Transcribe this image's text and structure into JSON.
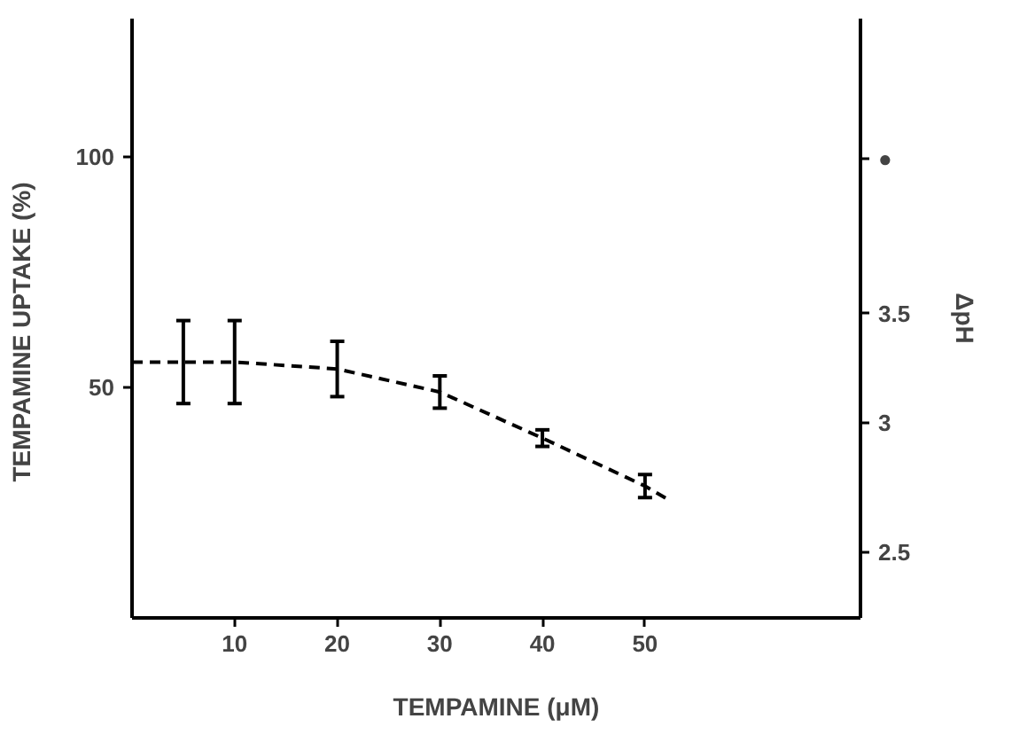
{
  "chart_data": {
    "type": "line",
    "xlabel": "TEMPAMINE (μM)",
    "ylabel": "TEMPAMINE   UPTAKE   (%)",
    "y2label": "ΔpH",
    "x": [
      0,
      5,
      10,
      20,
      30,
      40,
      50,
      52
    ],
    "series": [
      {
        "color": "#000000",
        "values": [
          55.5,
          55.5,
          55.5,
          54,
          49,
          39,
          28.6,
          26
        ],
        "errors": [
          null,
          9,
          9,
          6,
          3.5,
          1.8,
          2.5,
          null
        ]
      }
    ],
    "xlim": [
      0,
      71
    ],
    "xticks": [
      10,
      20,
      30,
      40,
      50
    ],
    "ylim": [
      0,
      130
    ],
    "yticks": [
      50,
      100
    ],
    "y2lim": [
      2.28,
      5.3
    ],
    "y2ticks": [
      2.5,
      3,
      3.5,
      {
        "value": 4.35,
        "label": "●"
      }
    ],
    "log": "y2",
    "marker": "none",
    "line_style": "dashed",
    "grid": false
  }
}
